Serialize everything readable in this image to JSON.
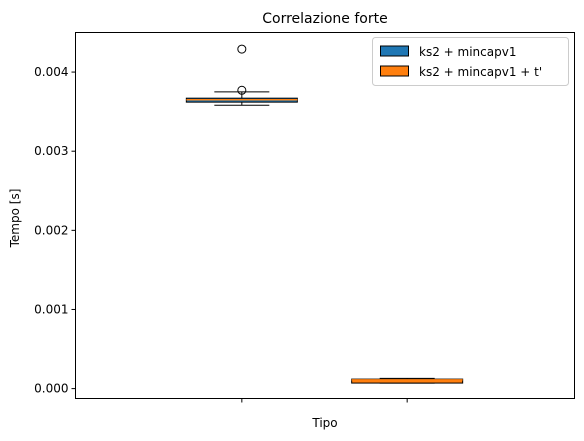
{
  "chart_data": {
    "type": "box",
    "title": "Correlazione forte",
    "xlabel": "Tipo",
    "ylabel": "Tempo [s]",
    "ylim": [
      -0.000125,
      0.0045
    ],
    "yticks": [
      0.0,
      0.001,
      0.002,
      0.003,
      0.004
    ],
    "ytick_labels": [
      "0.000",
      "0.001",
      "0.002",
      "0.003",
      "0.004"
    ],
    "grid": false,
    "legend_position": "top-right",
    "series": [
      {
        "name": "ks2 + mincapv1",
        "color": "#1f77b4",
        "whisker_low": 0.00358,
        "q1": 0.00362,
        "median": 0.00365,
        "q3": 0.00367,
        "whisker_high": 0.00375,
        "outliers": [
          0.00377,
          0.00429
        ]
      },
      {
        "name": "ks2 + mincapv1 + t'",
        "color": "#ff7f0e",
        "whisker_low": 7e-05,
        "q1": 7e-05,
        "median": 0.00011,
        "q3": 0.00012,
        "whisker_high": 0.00013,
        "outliers": []
      }
    ]
  }
}
